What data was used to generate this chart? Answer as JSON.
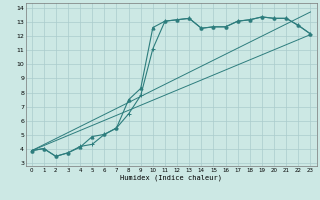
{
  "title": "",
  "xlabel": "Humidex (Indice chaleur)",
  "ylabel": "",
  "bg_color": "#cce8e4",
  "grid_color": "#aacccc",
  "line_color": "#2d7d7d",
  "xlim": [
    -0.5,
    23.5
  ],
  "ylim": [
    2.8,
    14.3
  ],
  "xticks": [
    0,
    1,
    2,
    3,
    4,
    5,
    6,
    7,
    8,
    9,
    10,
    11,
    12,
    13,
    14,
    15,
    16,
    17,
    18,
    19,
    20,
    21,
    22,
    23
  ],
  "yticks": [
    3,
    4,
    5,
    6,
    7,
    8,
    9,
    10,
    11,
    12,
    13,
    14
  ],
  "curve1_x": [
    0,
    1,
    2,
    3,
    4,
    5,
    6,
    7,
    8,
    9,
    10,
    11,
    12,
    13,
    14,
    15,
    16,
    17,
    18,
    19,
    20,
    21,
    22,
    23
  ],
  "curve1_y": [
    3.9,
    4.05,
    3.5,
    3.75,
    4.15,
    4.9,
    5.05,
    5.5,
    7.5,
    8.3,
    12.6,
    13.05,
    13.15,
    13.25,
    12.55,
    12.65,
    12.65,
    13.05,
    13.15,
    13.35,
    13.25,
    13.25,
    12.75,
    12.15
  ],
  "curve2_x": [
    0,
    1,
    2,
    3,
    4,
    5,
    6,
    7,
    8,
    9,
    10,
    11,
    12,
    13,
    14,
    15,
    16,
    17,
    18,
    19,
    20,
    21,
    22,
    23
  ],
  "curve2_y": [
    3.9,
    4.05,
    3.5,
    3.75,
    4.2,
    4.35,
    5.05,
    5.5,
    6.5,
    7.8,
    11.1,
    13.05,
    13.15,
    13.25,
    12.55,
    12.65,
    12.65,
    13.05,
    13.15,
    13.35,
    13.25,
    13.25,
    12.75,
    12.15
  ],
  "line1_x": [
    0,
    23
  ],
  "line1_y": [
    3.9,
    13.7
  ],
  "line2_x": [
    0,
    23
  ],
  "line2_y": [
    3.9,
    12.1
  ],
  "fig_w": 3.2,
  "fig_h": 2.0,
  "dpi": 100
}
